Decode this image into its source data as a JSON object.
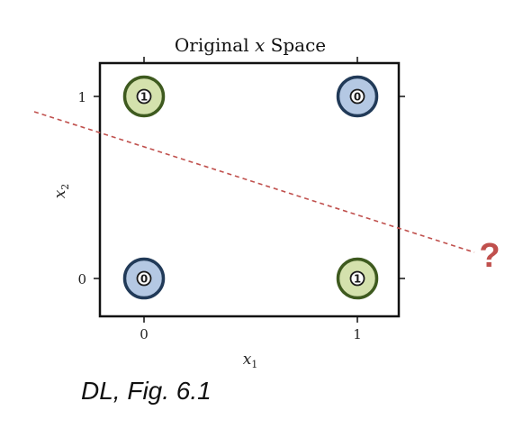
{
  "title_prefix": "Original ",
  "title_var": "x",
  "title_suffix": " Space",
  "x_axis": {
    "label_var": "x",
    "label_sub": "1",
    "ticks": [
      "0",
      "1"
    ]
  },
  "y_axis": {
    "label_var": "x",
    "label_sub": "2",
    "ticks": [
      "0",
      "1"
    ]
  },
  "points": [
    {
      "x1": 0,
      "x2": 1,
      "label": "1"
    },
    {
      "x1": 1,
      "x2": 1,
      "label": "0"
    },
    {
      "x1": 0,
      "x2": 0,
      "label": "0"
    },
    {
      "x1": 1,
      "x2": 0,
      "label": "1"
    }
  ],
  "colors": {
    "class_1_fill": "#d4e1ad",
    "class_1_stroke": "#3e5a1f",
    "class_0_fill": "#b4c8e3",
    "class_0_stroke": "#213a58",
    "separator": "#c0504d",
    "question": "#c0504d",
    "frame": "#111111"
  },
  "question_mark": "?",
  "caption": "DL, Fig. 6.1"
}
